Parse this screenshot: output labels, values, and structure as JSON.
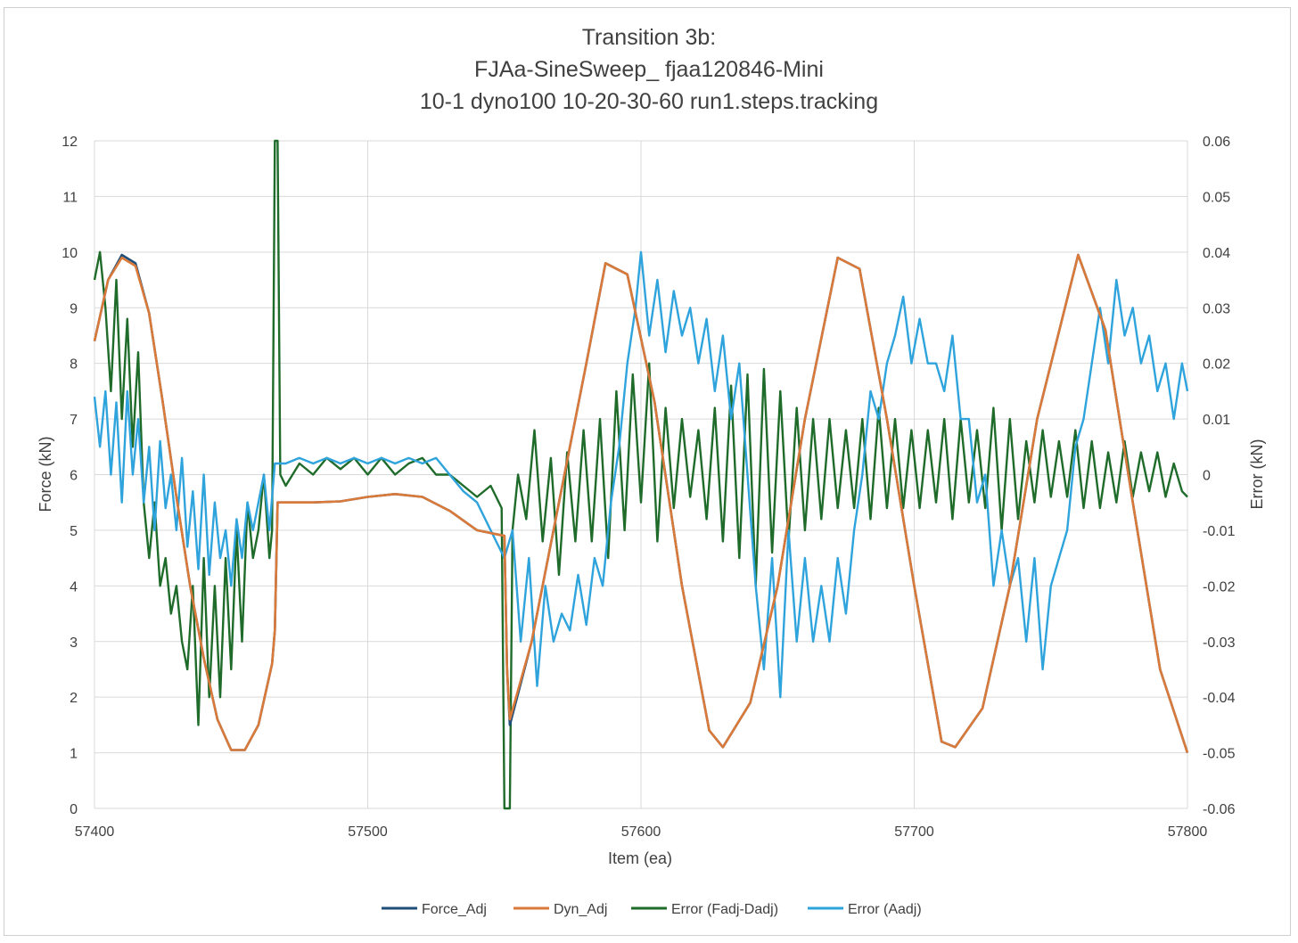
{
  "chart_data": {
    "type": "line",
    "title_lines": [
      "Transition 3b:",
      "FJAa-SineSweep_ fjaa120846-Mini",
      "10-1 dyno100 10-20-30-60 run1.steps.tracking"
    ],
    "xlabel": "Item (ea)",
    "ylabel": "Force (kN)",
    "y2label": "Error (kN)",
    "xlim": [
      57400,
      57800
    ],
    "ylim": [
      0,
      12
    ],
    "y2lim": [
      -0.06,
      0.06
    ],
    "x_ticks": [
      57400,
      57500,
      57600,
      57700,
      57800
    ],
    "y_ticks": [
      0,
      1,
      2,
      3,
      4,
      5,
      6,
      7,
      8,
      9,
      10,
      11,
      12
    ],
    "y2_ticks": [
      "-0.06",
      "-0.05",
      "-0.04",
      "-0.03",
      "-0.02",
      "-0.01",
      "0",
      "0.01",
      "0.02",
      "0.03",
      "0.04",
      "0.05",
      "0.06"
    ],
    "grid": true,
    "legend_position": "bottom",
    "series": [
      {
        "name": "Force_Adj",
        "axis": "left",
        "color": "#1f4e79",
        "x": [
          57400,
          57405,
          57410,
          57415,
          57420,
          57425,
          57430,
          57435,
          57440,
          57445,
          57450,
          57455,
          57460,
          57465,
          57466,
          57467,
          57470,
          57480,
          57490,
          57500,
          57510,
          57520,
          57530,
          57540,
          57550,
          57551,
          57552,
          57560,
          57570,
          57580,
          57587,
          57595,
          57605,
          57615,
          57625,
          57630,
          57640,
          57650,
          57660,
          57672,
          57680,
          57690,
          57700,
          57710,
          57715,
          57725,
          57735,
          57745,
          57760,
          57770,
          57780,
          57790,
          57800
        ],
        "y": [
          8.4,
          9.5,
          9.95,
          9.8,
          8.9,
          7.3,
          5.6,
          4.0,
          2.7,
          1.6,
          1.05,
          1.05,
          1.5,
          2.6,
          3.2,
          5.5,
          5.5,
          5.5,
          5.52,
          5.6,
          5.65,
          5.6,
          5.35,
          5.0,
          4.9,
          2.5,
          1.5,
          3.0,
          5.5,
          8.0,
          9.8,
          9.6,
          7.3,
          4.0,
          1.4,
          1.1,
          1.9,
          4.0,
          7.0,
          9.9,
          9.7,
          7.0,
          4.0,
          1.2,
          1.1,
          1.8,
          4.0,
          7.0,
          9.95,
          8.6,
          5.5,
          2.5,
          1.0
        ]
      },
      {
        "name": "Dyn_Adj",
        "axis": "left",
        "color": "#d97a3a",
        "x": [
          57400,
          57405,
          57410,
          57415,
          57420,
          57425,
          57430,
          57435,
          57440,
          57445,
          57450,
          57455,
          57460,
          57465,
          57466,
          57467,
          57470,
          57480,
          57490,
          57500,
          57510,
          57520,
          57530,
          57540,
          57550,
          57551,
          57552,
          57560,
          57570,
          57580,
          57587,
          57595,
          57605,
          57615,
          57625,
          57630,
          57640,
          57650,
          57660,
          57672,
          57680,
          57690,
          57700,
          57710,
          57715,
          57725,
          57735,
          57745,
          57760,
          57770,
          57780,
          57790,
          57800
        ],
        "y": [
          8.4,
          9.5,
          9.9,
          9.75,
          8.9,
          7.3,
          5.6,
          4.0,
          2.7,
          1.6,
          1.05,
          1.05,
          1.5,
          2.6,
          3.2,
          5.5,
          5.5,
          5.5,
          5.52,
          5.6,
          5.65,
          5.6,
          5.35,
          5.0,
          4.9,
          2.5,
          1.6,
          3.0,
          5.5,
          8.0,
          9.8,
          9.6,
          7.3,
          4.0,
          1.4,
          1.1,
          1.9,
          4.0,
          7.0,
          9.9,
          9.7,
          7.0,
          4.0,
          1.2,
          1.1,
          1.8,
          4.0,
          7.0,
          9.95,
          8.6,
          5.5,
          2.5,
          1.0
        ]
      },
      {
        "name": "Error (Fadj-Dadj)",
        "axis": "right",
        "color": "#1e6b2a",
        "x": [
          57400,
          57402,
          57404,
          57406,
          57408,
          57410,
          57412,
          57414,
          57416,
          57418,
          57420,
          57422,
          57424,
          57426,
          57428,
          57430,
          57432,
          57434,
          57436,
          57438,
          57440,
          57442,
          57444,
          57446,
          57448,
          57450,
          57452,
          57454,
          57456,
          57458,
          57460,
          57462,
          57464,
          57465,
          57466,
          57467,
          57468,
          57470,
          57475,
          57480,
          57485,
          57490,
          57495,
          57500,
          57505,
          57510,
          57515,
          57520,
          57525,
          57530,
          57535,
          57540,
          57545,
          57549,
          57550,
          57551,
          57552,
          57553,
          57555,
          57558,
          57561,
          57564,
          57567,
          57570,
          57573,
          57576,
          57579,
          57582,
          57585,
          57588,
          57591,
          57594,
          57597,
          57600,
          57603,
          57606,
          57609,
          57612,
          57615,
          57618,
          57621,
          57624,
          57627,
          57630,
          57633,
          57636,
          57639,
          57642,
          57645,
          57648,
          57651,
          57654,
          57657,
          57660,
          57663,
          57666,
          57669,
          57672,
          57675,
          57678,
          57681,
          57684,
          57687,
          57690,
          57693,
          57696,
          57699,
          57702,
          57705,
          57708,
          57711,
          57714,
          57717,
          57720,
          57723,
          57726,
          57729,
          57732,
          57735,
          57738,
          57741,
          57744,
          57747,
          57750,
          57753,
          57756,
          57759,
          57762,
          57765,
          57768,
          57771,
          57774,
          57777,
          57780,
          57783,
          57786,
          57789,
          57792,
          57795,
          57798,
          57800
        ],
        "y": [
          0.035,
          0.04,
          0.03,
          0.015,
          0.035,
          0.01,
          0.028,
          0.005,
          0.022,
          -0.005,
          -0.015,
          -0.005,
          -0.02,
          -0.015,
          -0.025,
          -0.02,
          -0.03,
          -0.035,
          -0.02,
          -0.045,
          -0.015,
          -0.04,
          -0.02,
          -0.04,
          -0.015,
          -0.035,
          -0.01,
          -0.03,
          -0.005,
          -0.015,
          -0.01,
          0.0,
          -0.015,
          -0.01,
          0.06,
          0.06,
          0.0,
          -0.002,
          0.002,
          0.0,
          0.003,
          0.001,
          0.003,
          0.0,
          0.003,
          0.0,
          0.002,
          0.003,
          0.0,
          0.0,
          -0.002,
          -0.004,
          -0.002,
          -0.006,
          -0.06,
          -0.06,
          -0.06,
          -0.01,
          0.0,
          -0.008,
          0.008,
          -0.012,
          0.003,
          -0.018,
          0.004,
          -0.012,
          0.008,
          -0.012,
          0.01,
          -0.015,
          0.015,
          -0.01,
          0.018,
          -0.005,
          0.02,
          -0.012,
          0.012,
          -0.006,
          0.01,
          -0.004,
          0.008,
          -0.008,
          0.012,
          -0.012,
          0.016,
          -0.015,
          0.018,
          -0.02,
          0.019,
          -0.014,
          0.015,
          -0.012,
          0.012,
          -0.01,
          0.01,
          -0.008,
          0.01,
          -0.006,
          0.008,
          -0.006,
          0.01,
          -0.008,
          0.012,
          -0.006,
          0.01,
          -0.006,
          0.008,
          -0.006,
          0.008,
          -0.005,
          0.01,
          -0.008,
          0.01,
          -0.005,
          0.008,
          -0.006,
          0.012,
          -0.01,
          0.01,
          -0.008,
          0.006,
          -0.005,
          0.008,
          -0.004,
          0.006,
          -0.004,
          0.008,
          -0.006,
          0.006,
          -0.006,
          0.004,
          -0.005,
          0.006,
          -0.004,
          0.004,
          -0.003,
          0.004,
          -0.004,
          0.002,
          -0.003,
          -0.004
        ]
      },
      {
        "name": "Error (Aadj)",
        "axis": "right",
        "color": "#2ea3dc",
        "x": [
          57400,
          57402,
          57404,
          57406,
          57408,
          57410,
          57412,
          57414,
          57416,
          57418,
          57420,
          57422,
          57424,
          57426,
          57428,
          57430,
          57432,
          57434,
          57436,
          57438,
          57440,
          57442,
          57444,
          57446,
          57448,
          57450,
          57452,
          57454,
          57456,
          57458,
          57460,
          57462,
          57464,
          57466,
          57468,
          57470,
          57475,
          57480,
          57485,
          57490,
          57495,
          57500,
          57505,
          57510,
          57515,
          57520,
          57525,
          57530,
          57535,
          57540,
          57545,
          57550,
          57553,
          57556,
          57559,
          57562,
          57565,
          57568,
          57571,
          57574,
          57577,
          57580,
          57583,
          57586,
          57589,
          57592,
          57595,
          57598,
          57600,
          57603,
          57606,
          57609,
          57612,
          57615,
          57618,
          57621,
          57624,
          57627,
          57630,
          57633,
          57636,
          57639,
          57642,
          57645,
          57648,
          57651,
          57654,
          57657,
          57660,
          57663,
          57666,
          57669,
          57672,
          57675,
          57678,
          57681,
          57684,
          57687,
          57690,
          57693,
          57696,
          57699,
          57702,
          57705,
          57708,
          57711,
          57714,
          57717,
          57720,
          57723,
          57726,
          57729,
          57732,
          57735,
          57738,
          57741,
          57744,
          57747,
          57750,
          57753,
          57756,
          57759,
          57762,
          57765,
          57768,
          57771,
          57774,
          57777,
          57780,
          57783,
          57786,
          57789,
          57792,
          57795,
          57798,
          57800
        ],
        "y": [
          0.014,
          0.005,
          0.015,
          0.0,
          0.013,
          -0.005,
          0.015,
          0.0,
          0.01,
          -0.005,
          0.005,
          -0.01,
          0.006,
          -0.006,
          0.0,
          -0.01,
          0.003,
          -0.013,
          -0.003,
          -0.017,
          0.0,
          -0.018,
          -0.005,
          -0.015,
          -0.01,
          -0.02,
          -0.008,
          -0.015,
          -0.005,
          -0.01,
          -0.005,
          0.0,
          -0.01,
          0.002,
          0.002,
          0.002,
          0.003,
          0.002,
          0.003,
          0.002,
          0.003,
          0.002,
          0.003,
          0.002,
          0.003,
          0.002,
          0.003,
          0.0,
          -0.003,
          -0.005,
          -0.01,
          -0.015,
          -0.01,
          -0.03,
          -0.015,
          -0.038,
          -0.02,
          -0.03,
          -0.025,
          -0.028,
          -0.018,
          -0.027,
          -0.015,
          -0.02,
          -0.005,
          0.005,
          0.02,
          0.03,
          0.04,
          0.025,
          0.035,
          0.022,
          0.033,
          0.025,
          0.03,
          0.02,
          0.028,
          0.015,
          0.025,
          0.01,
          0.02,
          0.0,
          -0.02,
          -0.035,
          -0.015,
          -0.04,
          -0.01,
          -0.03,
          -0.015,
          -0.03,
          -0.02,
          -0.03,
          -0.015,
          -0.025,
          -0.01,
          0.0,
          0.015,
          0.01,
          0.02,
          0.025,
          0.032,
          0.02,
          0.028,
          0.02,
          0.02,
          0.015,
          0.025,
          0.01,
          0.01,
          -0.005,
          0.0,
          -0.02,
          -0.01,
          -0.02,
          -0.015,
          -0.03,
          -0.015,
          -0.035,
          -0.02,
          -0.015,
          -0.01,
          0.005,
          0.01,
          0.02,
          0.03,
          0.02,
          0.035,
          0.025,
          0.03,
          0.02,
          0.025,
          0.015,
          0.02,
          0.01,
          0.02,
          0.015
        ]
      }
    ]
  }
}
